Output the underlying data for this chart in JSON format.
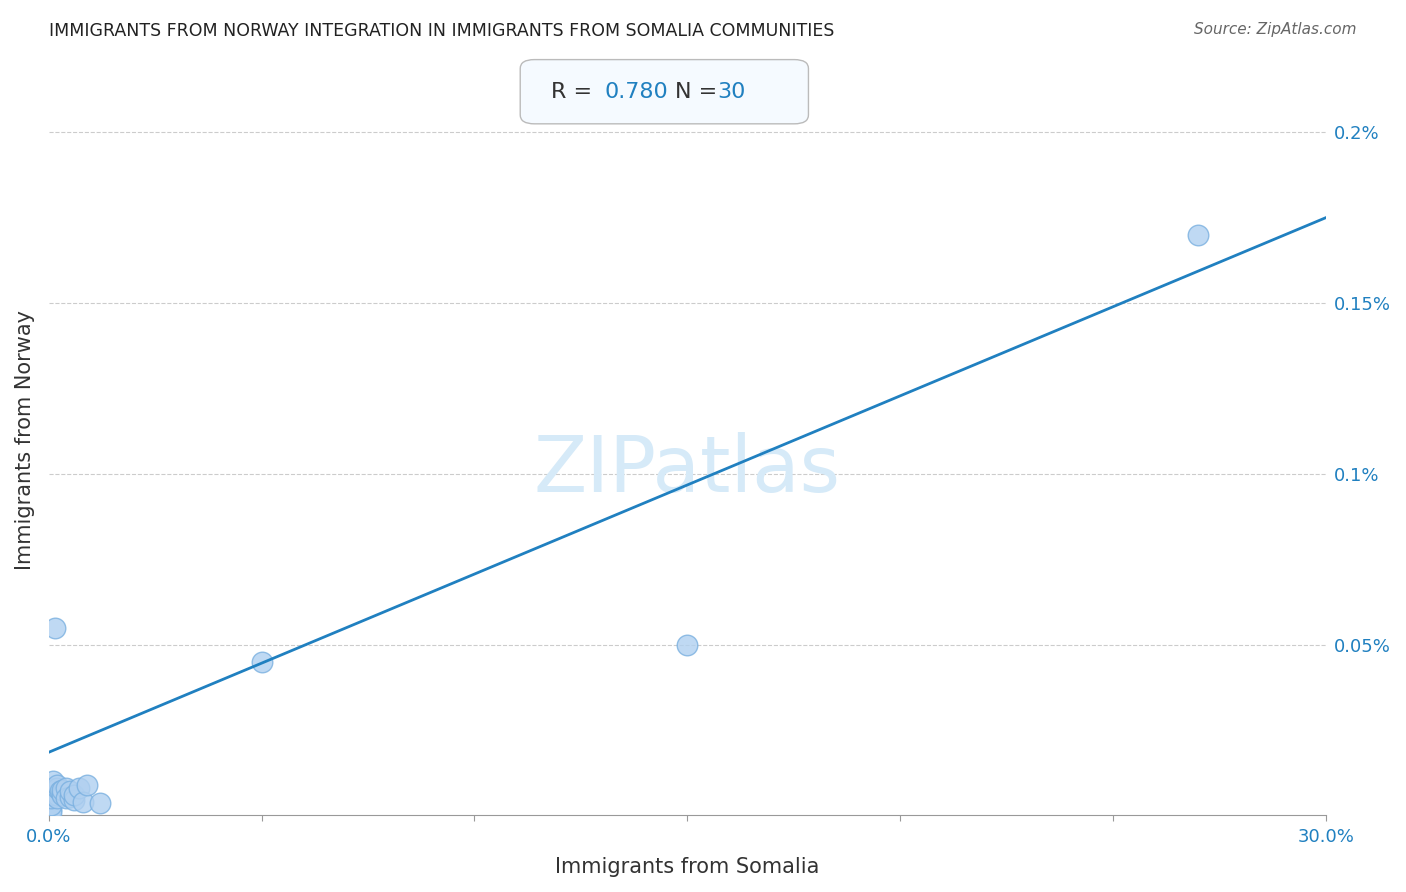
{
  "title": "IMMIGRANTS FROM NORWAY INTEGRATION IN IMMIGRANTS FROM SOMALIA COMMUNITIES",
  "source": "Source: ZipAtlas.com",
  "xlabel": "Immigrants from Somalia",
  "ylabel": "Immigrants from Norway",
  "R": 0.78,
  "N": 30,
  "xlim": [
    0,
    0.3
  ],
  "ylim": [
    0,
    0.0022
  ],
  "xticks": [
    0.0,
    0.05,
    0.1,
    0.15,
    0.2,
    0.25,
    0.3
  ],
  "xtick_labels": [
    "0.0%",
    "",
    "",
    "",
    "",
    "",
    "30.0%"
  ],
  "ytick_labels": [
    "0.2%",
    "0.15%",
    "0.1%",
    "0.05%"
  ],
  "ytick_vals": [
    0.002,
    0.0015,
    0.001,
    0.0005
  ],
  "scatter_x": [
    0.0005,
    0.0005,
    0.0005,
    0.0005,
    0.001,
    0.001,
    0.001,
    0.001,
    0.0015,
    0.002,
    0.002,
    0.002,
    0.002,
    0.0025,
    0.003,
    0.003,
    0.003,
    0.004,
    0.004,
    0.005,
    0.005,
    0.006,
    0.006,
    0.007,
    0.008,
    0.009,
    0.012,
    0.05,
    0.15,
    0.27
  ],
  "scatter_y": [
    2e-05,
    1e-05,
    3e-05,
    5e-05,
    8e-05,
    6e-05,
    0.0001,
    7e-05,
    0.00055,
    6e-05,
    5e-05,
    8e-05,
    9e-05,
    7e-05,
    6.5e-05,
    6e-05,
    7.5e-05,
    8e-05,
    5e-05,
    5.5e-05,
    7e-05,
    4.5e-05,
    6e-05,
    8e-05,
    4e-05,
    9e-05,
    3.5e-05,
    0.00045,
    0.0005,
    0.0017
  ],
  "dot_color": "#b0d0f0",
  "dot_edge_color": "#7ab0e0",
  "line_color": "#2080c0",
  "line_start_x": 0.0,
  "line_start_y": 0.000185,
  "line_end_x": 0.3,
  "line_end_y": 0.00175,
  "watermark_color": "#d6eaf8",
  "grid_color": "#cccccc",
  "title_color": "#222222",
  "axis_label_color": "#333333",
  "tick_label_color": "#2080c0",
  "stat_box_facecolor": "#f5faff",
  "stat_border_color": "#bbbbbb",
  "R_label_color": "#333333",
  "N_label_color": "#2080c0"
}
